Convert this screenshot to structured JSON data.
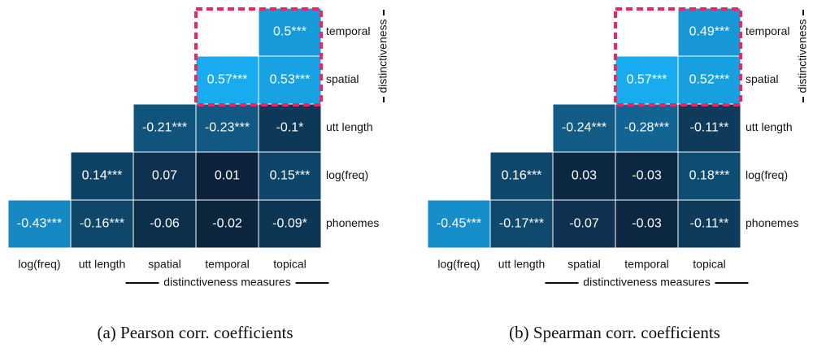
{
  "chart_data": [
    {
      "type": "heatmap",
      "caption": "(a) Pearson corr. coefficients",
      "x_categories": [
        "log(freq)",
        "utt length",
        "spatial",
        "temporal",
        "topical"
      ],
      "y_categories": [
        "temporal",
        "spatial",
        "utt length",
        "log(freq)",
        "phonemes"
      ],
      "x_group_label": "distinctiveness measures",
      "y_group_label": "distinctiveness",
      "colors": [
        "#0b2037",
        "#19abf0"
      ],
      "values": [
        [
          null,
          null,
          null,
          null,
          0.5
        ],
        [
          null,
          null,
          null,
          0.57,
          0.53
        ],
        [
          null,
          null,
          -0.21,
          -0.23,
          -0.1
        ],
        [
          null,
          0.14,
          0.07,
          0.01,
          0.15
        ],
        [
          -0.43,
          -0.16,
          -0.06,
          -0.02,
          -0.09
        ]
      ],
      "value_labels": [
        [
          null,
          null,
          null,
          null,
          "0.5***"
        ],
        [
          null,
          null,
          null,
          "0.57***",
          "0.53***"
        ],
        [
          null,
          null,
          "-0.21***",
          "-0.23***",
          "-0.1*"
        ],
        [
          null,
          "0.14***",
          "0.07",
          "0.01",
          "0.15***"
        ],
        [
          "-0.43***",
          "-0.16***",
          "-0.06",
          "-0.02",
          "-0.09*"
        ]
      ]
    },
    {
      "type": "heatmap",
      "caption": "(b) Spearman corr. coefficients",
      "x_categories": [
        "log(freq)",
        "utt length",
        "spatial",
        "temporal",
        "topical"
      ],
      "y_categories": [
        "temporal",
        "spatial",
        "utt length",
        "log(freq)",
        "phonemes"
      ],
      "x_group_label": "distinctiveness measures",
      "y_group_label": "distinctiveness",
      "colors": [
        "#0b2037",
        "#19abf0"
      ],
      "values": [
        [
          null,
          null,
          null,
          null,
          0.49
        ],
        [
          null,
          null,
          null,
          0.57,
          0.52
        ],
        [
          null,
          null,
          -0.24,
          -0.28,
          -0.11
        ],
        [
          null,
          0.16,
          0.03,
          -0.03,
          0.18
        ],
        [
          -0.45,
          -0.17,
          -0.07,
          -0.03,
          -0.11
        ]
      ],
      "value_labels": [
        [
          null,
          null,
          null,
          null,
          "0.49***"
        ],
        [
          null,
          null,
          null,
          "0.57***",
          "0.52***"
        ],
        [
          null,
          null,
          "-0.24***",
          "-0.28***",
          "-0.11**"
        ],
        [
          null,
          "0.16***",
          "0.03",
          "-0.03",
          "0.18***"
        ],
        [
          "-0.45***",
          "-0.17***",
          "-0.07",
          "-0.03",
          "-0.11**"
        ]
      ]
    }
  ]
}
